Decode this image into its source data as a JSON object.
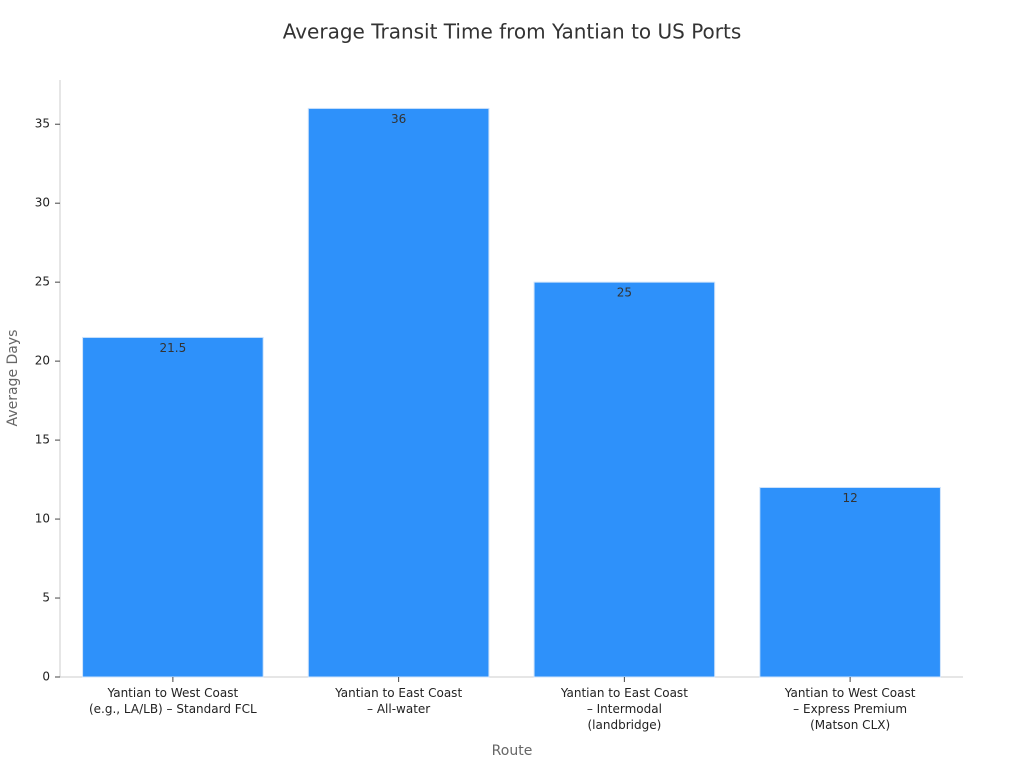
{
  "chart_data": {
    "type": "bar",
    "title": "Average Transit Time from Yantian to US Ports",
    "x_label": "Route",
    "y_label": "Average Days",
    "categories": [
      [
        "Yantian to West Coast",
        "(e.g., LA/LB) – Standard FCL"
      ],
      [
        "Yantian to East Coast",
        "– All-water"
      ],
      [
        "Yantian to East Coast",
        "– Intermodal",
        "(landbridge)"
      ],
      [
        "Yantian to West Coast",
        "– Express Premium",
        "(Matson CLX)"
      ]
    ],
    "values": [
      21.5,
      36,
      25,
      12
    ],
    "color": "#2e91fa",
    "ylim": [
      0,
      37.8
    ],
    "yticks": [
      0,
      5,
      10,
      15,
      20,
      25,
      30,
      35
    ],
    "grid": false
  }
}
